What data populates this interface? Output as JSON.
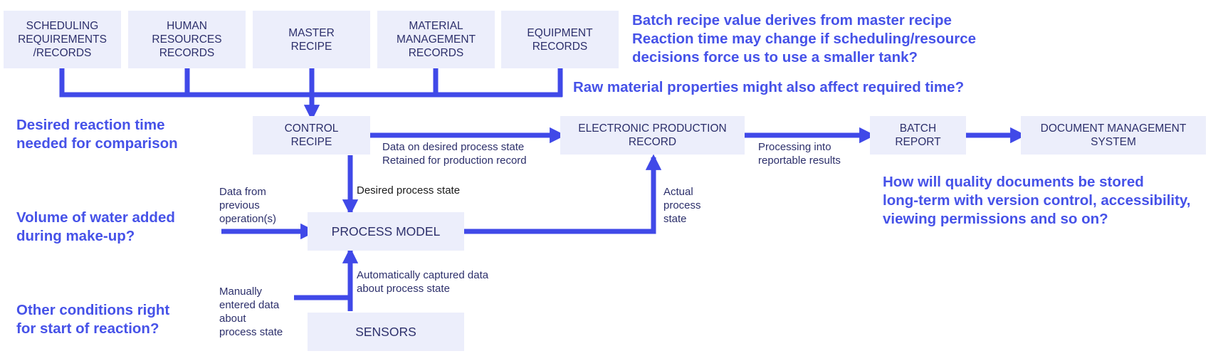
{
  "boxes": {
    "scheduling": "SCHEDULING\nREQUIREMENTS\n/RECORDS",
    "human_resources": "HUMAN\nRESOURCES\nRECORDS",
    "master_recipe": "MASTER\nRECIPE",
    "material": "MATERIAL\nMANAGEMENT\nRECORDS",
    "equipment": "EQUIPMENT\nRECORDS",
    "control_recipe": "CONTROL\nRECIPE",
    "epr": "ELECTRONIC PRODUCTION\nRECORD",
    "batch_report": "BATCH\nREPORT",
    "dms": "DOCUMENT MANAGEMENT\nSYSTEM",
    "process_model": "PROCESS MODEL",
    "sensors": "SENSORS"
  },
  "labels": {
    "data_desired": "Data on desired process state\nRetained for production record",
    "processing": "Processing into\nreportable results",
    "desired_state": "Desired process state",
    "data_previous": "Data from\nprevious\noperation(s)",
    "actual_state": "Actual\nprocess\nstate",
    "auto_captured": "Automatically captured data\nabout process state",
    "manual_entered": "Manually\nentered data\nabout\nprocess state"
  },
  "notes": {
    "batch_recipe": "Batch recipe value derives from master recipe\nReaction time may change if scheduling/resource\ndecisions force us to use a smaller tank?",
    "raw_material": "Raw material properties might also affect required time?",
    "desired_reaction": "Desired reaction time\nneeded for comparison",
    "volume_water": "Volume of water added\nduring make-up?",
    "other_conditions": "Other conditions right\nfor start of reaction?",
    "quality_docs": "How will quality documents be stored\nlong-term with version control, accessibility,\nviewing permissions and so on?"
  },
  "colors": {
    "arrow": "#4049e8",
    "box_fill": "#eceefb",
    "box_text": "#2c2f6b",
    "note_text": "#4652e8"
  }
}
